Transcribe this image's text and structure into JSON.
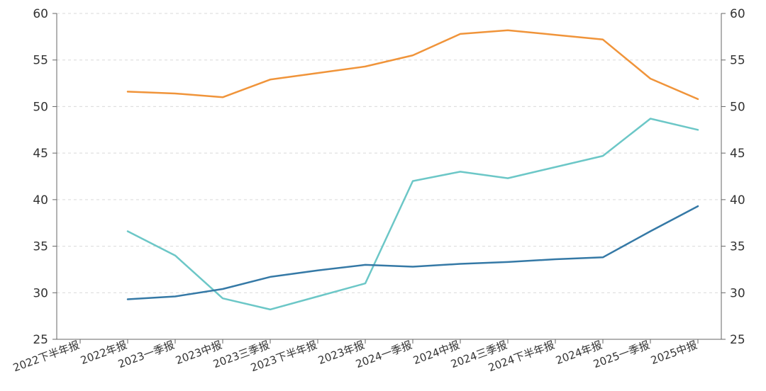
{
  "chart_data": {
    "type": "line",
    "categories": [
      "2022下半年报",
      "2022年报",
      "2023一季报",
      "2023中报",
      "2023三季报",
      "2023下半年报",
      "2023年报",
      "2024一季报",
      "2024中报",
      "2024三季报",
      "2024下半年报",
      "2024年报",
      "2025一季报",
      "2025中报"
    ],
    "series": [
      {
        "color": "#f0943a",
        "values": [
          null,
          51.6,
          51.4,
          51.0,
          52.9,
          53.6,
          54.3,
          55.5,
          57.8,
          58.2,
          57.7,
          57.2,
          53.0,
          50.8
        ]
      },
      {
        "color": "#6cc7c7",
        "values": [
          null,
          36.6,
          34.0,
          29.4,
          28.2,
          29.6,
          31.0,
          42.0,
          43.0,
          42.3,
          43.5,
          44.7,
          48.7,
          47.5
        ]
      },
      {
        "color": "#3579a6",
        "values": [
          null,
          29.3,
          29.6,
          30.4,
          31.7,
          32.4,
          33.0,
          32.8,
          33.1,
          33.3,
          33.6,
          33.8,
          36.6,
          39.3
        ]
      }
    ],
    "y_left": {
      "ticks": [
        "60",
        "55",
        "50",
        "45",
        "40",
        "35",
        "30",
        "25"
      ],
      "range": [
        25,
        60
      ]
    },
    "y_right": {
      "ticks": [
        "60",
        "55",
        "50",
        "45",
        "40",
        "35",
        "30",
        "25"
      ],
      "range": [
        25,
        60
      ]
    },
    "grid": true,
    "grid_style": "dashed"
  }
}
